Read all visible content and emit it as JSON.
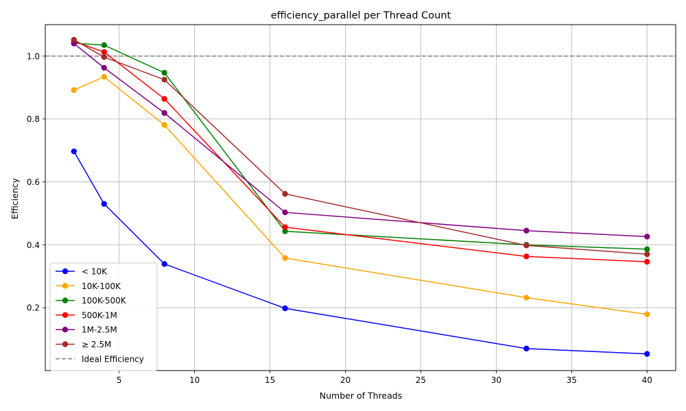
{
  "chart_data": {
    "type": "line",
    "title": "efficiency_parallel per Thread Count",
    "xlabel": "Number of Threads",
    "ylabel": "Efficiency",
    "xlim": [
      0.1,
      41.9
    ],
    "ylim": [
      0.0,
      1.1
    ],
    "x_ticks": [
      5,
      10,
      15,
      20,
      25,
      30,
      35,
      40
    ],
    "x_tick_labels": [
      "5",
      "10",
      "15",
      "20",
      "25",
      "30",
      "35",
      "40"
    ],
    "y_ticks": [
      0.2,
      0.4,
      0.6,
      0.8,
      1.0
    ],
    "y_tick_labels": [
      "0.2",
      "0.4",
      "0.6",
      "0.8",
      "1.0"
    ],
    "grid": true,
    "legend_position": "lower-left",
    "x": [
      2,
      4,
      8,
      16,
      32,
      40
    ],
    "series": [
      {
        "name": "< 10K",
        "color": "#0000ff",
        "values": [
          0.697,
          0.53,
          0.339,
          0.198,
          0.07,
          0.053
        ]
      },
      {
        "name": "10K-100K",
        "color": "#ffa500",
        "values": [
          0.892,
          0.934,
          0.781,
          0.358,
          0.232,
          0.179
        ]
      },
      {
        "name": "100K-500K",
        "color": "#008000",
        "values": [
          1.041,
          1.035,
          0.947,
          0.443,
          0.4,
          0.386
        ]
      },
      {
        "name": "500K-1M",
        "color": "#ff0000",
        "values": [
          1.047,
          1.013,
          0.864,
          0.456,
          0.363,
          0.346
        ]
      },
      {
        "name": "1M-2.5M",
        "color": "#800080",
        "values": [
          1.04,
          0.963,
          0.819,
          0.503,
          0.445,
          0.426
        ]
      },
      {
        "name": "≥ 2.5M",
        "color": "#a52a2a",
        "values": [
          1.052,
          0.997,
          0.925,
          0.562,
          0.398,
          0.37
        ]
      }
    ],
    "reference_line": {
      "name": "Ideal Efficiency",
      "y": 1.0,
      "color": "#808080",
      "style": "dashed"
    }
  }
}
